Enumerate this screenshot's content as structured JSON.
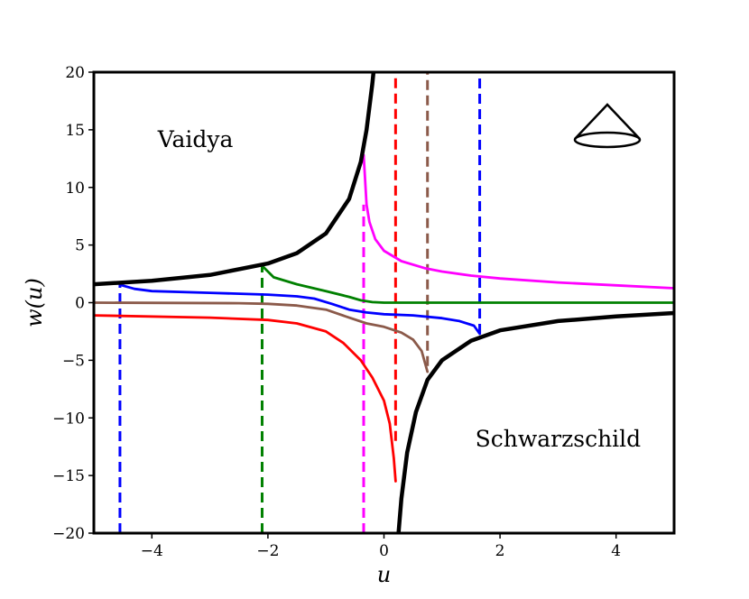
{
  "chart_data": {
    "type": "line",
    "title": "",
    "xlabel": "u",
    "ylabel": "w(u)",
    "xlim": [
      -5,
      5
    ],
    "ylim": [
      -20,
      20
    ],
    "xticks": [
      -4,
      -2,
      0,
      2,
      4
    ],
    "yticks": [
      -20,
      -15,
      -10,
      -5,
      0,
      5,
      10,
      15,
      20
    ],
    "x_tick_labels": [
      "−4",
      "−2",
      "0",
      "2",
      "4"
    ],
    "y_tick_labels": [
      "−20",
      "−15",
      "−10",
      "−5",
      "0",
      "5",
      "10",
      "15",
      "20"
    ],
    "grid": false,
    "legend": "none",
    "annotations": [
      {
        "text": "Vaidya",
        "x": -3.9,
        "y": 13.5
      },
      {
        "text": "Schwarzschild",
        "x": 3.0,
        "y": -12.5
      }
    ],
    "boundary_curves": [
      {
        "color": "#000000",
        "points": [
          [
            -5,
            1.6
          ],
          [
            -4,
            1.9
          ],
          [
            -3,
            2.4
          ],
          [
            -2,
            3.4
          ],
          [
            -1.5,
            4.3
          ],
          [
            -1,
            6.0
          ],
          [
            -0.6,
            9.0
          ],
          [
            -0.4,
            12.2
          ],
          [
            -0.3,
            15.0
          ],
          [
            -0.2,
            19.0
          ],
          [
            -0.18,
            20
          ]
        ]
      },
      {
        "color": "#000000",
        "points": [
          [
            0.25,
            -20
          ],
          [
            0.3,
            -17.0
          ],
          [
            0.4,
            -13.0
          ],
          [
            0.55,
            -9.5
          ],
          [
            0.75,
            -6.7
          ],
          [
            1.0,
            -5.0
          ],
          [
            1.5,
            -3.3
          ],
          [
            2.0,
            -2.4
          ],
          [
            3.0,
            -1.6
          ],
          [
            4.0,
            -1.2
          ],
          [
            5.0,
            -0.9
          ]
        ]
      }
    ],
    "series": [
      {
        "color": "#0000ff",
        "points": [
          [
            -4.55,
            1.55
          ],
          [
            -4.3,
            1.2
          ],
          [
            -4,
            1.0
          ],
          [
            -3,
            0.85
          ],
          [
            -2,
            0.7
          ],
          [
            -1.5,
            0.55
          ],
          [
            -1.2,
            0.35
          ],
          [
            -0.9,
            -0.1
          ],
          [
            -0.6,
            -0.6
          ],
          [
            -0.3,
            -0.85
          ],
          [
            0,
            -1.0
          ],
          [
            0.5,
            -1.1
          ],
          [
            1.0,
            -1.35
          ],
          [
            1.3,
            -1.6
          ],
          [
            1.55,
            -2.0
          ],
          [
            1.65,
            -2.7
          ]
        ]
      },
      {
        "color": "#008000",
        "points": [
          [
            -2.1,
            3.2
          ],
          [
            -1.9,
            2.2
          ],
          [
            -1.5,
            1.6
          ],
          [
            -1.0,
            1.0
          ],
          [
            -0.6,
            0.5
          ],
          [
            -0.4,
            0.2
          ],
          [
            -0.2,
            0.05
          ],
          [
            0,
            0.0
          ],
          [
            5.0,
            0.0
          ]
        ]
      },
      {
        "color": "#8b5a4a",
        "points": [
          [
            -5,
            0.0
          ],
          [
            -2.5,
            -0.05
          ],
          [
            -2,
            -0.1
          ],
          [
            -1.5,
            -0.25
          ],
          [
            -1.0,
            -0.6
          ],
          [
            -0.6,
            -1.3
          ],
          [
            -0.3,
            -1.8
          ],
          [
            0,
            -2.1
          ],
          [
            0.3,
            -2.6
          ],
          [
            0.5,
            -3.2
          ],
          [
            0.65,
            -4.2
          ],
          [
            0.75,
            -6.0
          ]
        ]
      },
      {
        "color": "#ff0000",
        "points": [
          [
            -5,
            -1.1
          ],
          [
            -3,
            -1.3
          ],
          [
            -2,
            -1.5
          ],
          [
            -1.5,
            -1.8
          ],
          [
            -1.0,
            -2.5
          ],
          [
            -0.7,
            -3.5
          ],
          [
            -0.4,
            -5.0
          ],
          [
            -0.2,
            -6.5
          ],
          [
            0,
            -8.5
          ],
          [
            0.1,
            -10.5
          ],
          [
            0.17,
            -13.5
          ],
          [
            0.2,
            -15.5
          ]
        ]
      },
      {
        "color": "#ff00ff",
        "points": [
          [
            -0.35,
            12.8
          ],
          [
            -0.3,
            8.5
          ],
          [
            -0.25,
            7.0
          ],
          [
            -0.15,
            5.5
          ],
          [
            0,
            4.5
          ],
          [
            0.3,
            3.6
          ],
          [
            0.7,
            3.0
          ],
          [
            1.0,
            2.7
          ],
          [
            1.5,
            2.35
          ],
          [
            2.0,
            2.1
          ],
          [
            3.0,
            1.75
          ],
          [
            4.0,
            1.5
          ],
          [
            5.0,
            1.25
          ]
        ]
      }
    ],
    "dashed_lines": [
      {
        "color": "#0000ff",
        "x": -4.55,
        "y_from": -20,
        "y_to": 1.55
      },
      {
        "color": "#008000",
        "x": -2.1,
        "y_from": -20,
        "y_to": 3.2
      },
      {
        "color": "#ff00ff",
        "x": -0.35,
        "y_from": -20,
        "y_to": 8.5
      },
      {
        "color": "#ff0000",
        "x": 0.2,
        "y_from": -12,
        "y_to": 20
      },
      {
        "color": "#8b5a4a",
        "x": 0.75,
        "y_from": -5.5,
        "y_to": 20
      },
      {
        "color": "#0000ff",
        "x": 1.65,
        "y_from": -2.7,
        "y_to": 20
      }
    ],
    "inset_icon": "light-cone-icon"
  }
}
